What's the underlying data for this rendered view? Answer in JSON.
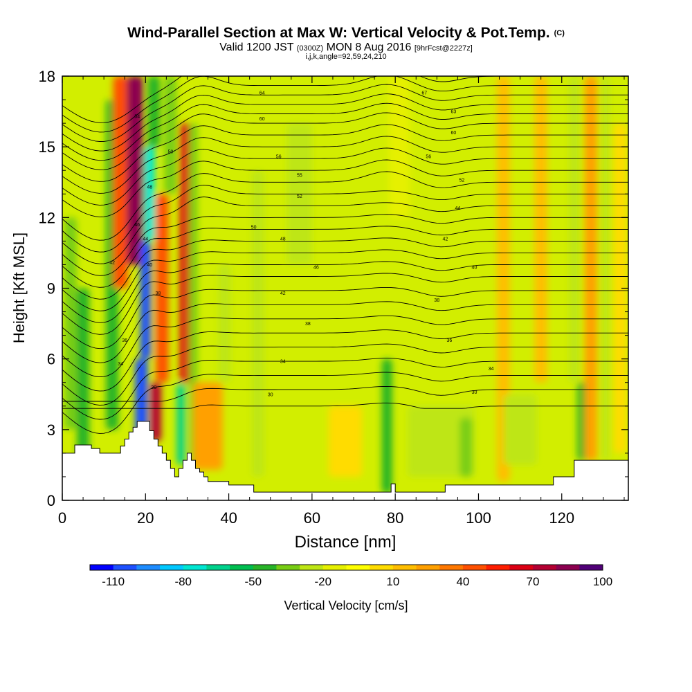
{
  "chart_data": {
    "type": "heatmap",
    "title": "Wind-Parallel Section at Max W: Vertical Velocity & Pot.Temp.",
    "title_mark": "(C)",
    "subtitle": {
      "valid": "Valid 1200 JST",
      "utc": "(0300Z)",
      "date": "MON 8 Aug 2016",
      "fcst": "[9hrFcst@2227z]"
    },
    "note": "i,j,k,angle=92,59,24,210",
    "xlabel": "Distance [nm]",
    "ylabel": "Height [Kft MSL]",
    "xlim": [
      0,
      136
    ],
    "ylim": [
      0,
      18
    ],
    "x_ticks": [
      "0",
      "20",
      "40",
      "60",
      "80",
      "100",
      "120"
    ],
    "x_tick_values": [
      0,
      20,
      40,
      60,
      80,
      100,
      120
    ],
    "y_ticks": [
      "0",
      "3",
      "6",
      "9",
      "12",
      "15",
      "18"
    ],
    "y_tick_values": [
      0,
      3,
      6,
      9,
      12,
      15,
      18
    ],
    "colorbar": {
      "label": "Vertical Velocity [cm/s]",
      "tick_labels": [
        "-110",
        "-80",
        "-50",
        "-20",
        "10",
        "40",
        "70",
        "100"
      ],
      "colors": [
        "#0000ff",
        "#1e50ff",
        "#1e8cff",
        "#00c8ff",
        "#00e6d2",
        "#00d28c",
        "#00be50",
        "#28b428",
        "#78cd14",
        "#bee614",
        "#e6f000",
        "#ffff00",
        "#ffdc00",
        "#ffbe00",
        "#ffa000",
        "#ff7800",
        "#ff5000",
        "#ff1e00",
        "#dc0014",
        "#b40032",
        "#8c0050",
        "#500078"
      ]
    },
    "background_field_color": "#d2ee00",
    "vertical_velocity_bands": [
      {
        "x": 2,
        "y0": 3,
        "y1": 12,
        "w": 3,
        "value": -30
      },
      {
        "x": 5,
        "y0": 1.8,
        "y1": 9,
        "w": 3,
        "value": -40
      },
      {
        "x": 12,
        "y0": 3,
        "y1": 17,
        "w": 3,
        "value": -35
      },
      {
        "x": 14,
        "y0": 9,
        "y1": 18,
        "w": 3.5,
        "value": 55
      },
      {
        "x": 17.5,
        "y0": 10,
        "y1": 18,
        "w": 4,
        "value": 90
      },
      {
        "x": 19,
        "y0": 2.8,
        "y1": 6,
        "w": 3,
        "value": -100
      },
      {
        "x": 20,
        "y0": 6,
        "y1": 11,
        "w": 2.5,
        "value": -95
      },
      {
        "x": 21,
        "y0": 11,
        "y1": 15,
        "w": 2.5,
        "value": -65
      },
      {
        "x": 22,
        "y0": 15,
        "y1": 18,
        "w": 3,
        "value": -40
      },
      {
        "x": 22.5,
        "y0": 2.5,
        "y1": 5,
        "w": 2.5,
        "value": 80
      },
      {
        "x": 24,
        "y0": 5,
        "y1": 13,
        "w": 3,
        "value": 50
      },
      {
        "x": 26,
        "y0": 13,
        "y1": 18,
        "w": 3,
        "value": -30
      },
      {
        "x": 28.5,
        "y0": 1.5,
        "y1": 5,
        "w": 2,
        "value": -60
      },
      {
        "x": 29.5,
        "y0": 5,
        "y1": 16,
        "w": 2.5,
        "value": 75
      },
      {
        "x": 31.5,
        "y0": 1.5,
        "y1": 16,
        "w": 2,
        "value": -25
      },
      {
        "x": 35,
        "y0": 1.3,
        "y1": 5,
        "w": 7,
        "value": 35
      },
      {
        "x": 39,
        "y0": 5,
        "y1": 10,
        "w": 3,
        "value": -15
      },
      {
        "x": 47,
        "y0": 1,
        "y1": 14,
        "w": 3,
        "value": -15
      },
      {
        "x": 57,
        "y0": 10,
        "y1": 16,
        "w": 6,
        "value": -15
      },
      {
        "x": 68,
        "y0": 1,
        "y1": 4,
        "w": 8,
        "value": 12
      },
      {
        "x": 78,
        "y0": 0.3,
        "y1": 6,
        "w": 2.5,
        "value": -35
      },
      {
        "x": 81,
        "y0": 12,
        "y1": 18,
        "w": 5,
        "value": -10
      },
      {
        "x": 91,
        "y0": 1,
        "y1": 4,
        "w": 16,
        "value": -20
      },
      {
        "x": 97,
        "y0": 1,
        "y1": 3.5,
        "w": 3,
        "value": -30
      },
      {
        "x": 106,
        "y0": 0.8,
        "y1": 18,
        "w": 3,
        "value": 20
      },
      {
        "x": 110,
        "y0": 1.5,
        "y1": 4.5,
        "w": 8,
        "value": -18
      },
      {
        "x": 115,
        "y0": 5,
        "y1": 18,
        "w": 3,
        "value": 25
      },
      {
        "x": 123,
        "y0": 5,
        "y1": 18,
        "w": 2.5,
        "value": -20
      },
      {
        "x": 125,
        "y0": 1.7,
        "y1": 5,
        "w": 2.5,
        "value": -35
      },
      {
        "x": 127,
        "y0": 1.7,
        "y1": 18,
        "w": 3,
        "value": 35
      },
      {
        "x": 130.5,
        "y0": 1.7,
        "y1": 18,
        "w": 2,
        "value": -15
      },
      {
        "x": 134,
        "y0": 2,
        "y1": 16,
        "w": 3,
        "value": 12
      }
    ],
    "terrain": {
      "x": [
        0,
        3,
        3,
        7,
        7,
        9,
        9,
        10,
        10,
        14,
        14,
        15,
        15,
        16,
        16,
        17,
        17,
        18,
        18,
        19,
        19,
        21,
        21,
        22,
        22,
        23,
        23,
        24,
        24,
        25,
        25,
        26,
        26,
        27,
        27,
        28,
        28,
        29,
        29,
        30,
        30,
        31,
        31,
        32,
        32,
        33,
        33,
        34,
        34,
        35,
        35,
        36,
        36,
        40,
        40,
        46,
        46,
        79,
        79,
        80,
        80,
        81,
        81,
        90,
        90,
        92,
        92,
        118,
        118,
        123,
        123,
        136
      ],
      "y": [
        2,
        2,
        2.35,
        2.35,
        2.2,
        2.2,
        2,
        2,
        2,
        2,
        2.3,
        2.3,
        2.6,
        2.6,
        2.9,
        2.9,
        3.1,
        3.1,
        3.35,
        3.35,
        3.35,
        3.35,
        2.95,
        2.95,
        2.6,
        2.6,
        2.3,
        2.3,
        2,
        2,
        1.7,
        1.7,
        1.35,
        1.35,
        1.0,
        1.0,
        1.35,
        1.35,
        1.7,
        1.7,
        2.0,
        2.0,
        1.7,
        1.7,
        1.35,
        1.35,
        1.2,
        1.2,
        1.0,
        1.0,
        0.8,
        0.8,
        0.8,
        0.8,
        0.65,
        0.65,
        0.35,
        0.35,
        0.7,
        0.7,
        0.35,
        0.35,
        0.35,
        0.35,
        0.35,
        0.35,
        0.65,
        0.65,
        1.0,
        1.0,
        1.7,
        1.7
      ]
    },
    "theta_contours": {
      "levels_y_right": [
        4.0,
        4.7,
        5.3,
        5.9,
        6.5,
        7.1,
        7.7,
        8.3,
        8.9,
        9.5,
        10.0,
        10.5,
        11.0,
        11.5,
        12.0,
        12.5,
        13.0,
        13.5,
        14.0,
        14.5,
        15.0,
        15.5,
        16.0,
        16.4,
        16.8,
        17.2,
        17.6,
        18.0
      ],
      "labels": [
        {
          "x": 18,
          "y": 16.3,
          "text": "54"
        },
        {
          "x": 26,
          "y": 14.8,
          "text": "50"
        },
        {
          "x": 21,
          "y": 13.3,
          "text": "48"
        },
        {
          "x": 18,
          "y": 11.7,
          "text": "46"
        },
        {
          "x": 20,
          "y": 11.1,
          "text": "44"
        },
        {
          "x": 21,
          "y": 10.0,
          "text": "40"
        },
        {
          "x": 23,
          "y": 8.8,
          "text": "38"
        },
        {
          "x": 12,
          "y": 10.1,
          "text": "42"
        },
        {
          "x": 15,
          "y": 6.8,
          "text": "36"
        },
        {
          "x": 14,
          "y": 5.8,
          "text": "34"
        },
        {
          "x": 22,
          "y": 4.8,
          "text": "30"
        },
        {
          "x": 48,
          "y": 17.3,
          "text": "64"
        },
        {
          "x": 48,
          "y": 16.2,
          "text": "60"
        },
        {
          "x": 52,
          "y": 14.6,
          "text": "56"
        },
        {
          "x": 57,
          "y": 13.8,
          "text": "55"
        },
        {
          "x": 57,
          "y": 12.9,
          "text": "52"
        },
        {
          "x": 46,
          "y": 11.6,
          "text": "50"
        },
        {
          "x": 53,
          "y": 11.1,
          "text": "48"
        },
        {
          "x": 61,
          "y": 9.9,
          "text": "46"
        },
        {
          "x": 53,
          "y": 8.8,
          "text": "42"
        },
        {
          "x": 59,
          "y": 7.5,
          "text": "38"
        },
        {
          "x": 53,
          "y": 5.9,
          "text": "34"
        },
        {
          "x": 50,
          "y": 4.5,
          "text": "30"
        },
        {
          "x": 87,
          "y": 17.3,
          "text": "67"
        },
        {
          "x": 94,
          "y": 16.5,
          "text": "63"
        },
        {
          "x": 94,
          "y": 15.6,
          "text": "60"
        },
        {
          "x": 88,
          "y": 14.6,
          "text": "56"
        },
        {
          "x": 96,
          "y": 13.6,
          "text": "52"
        },
        {
          "x": 95,
          "y": 12.4,
          "text": "44"
        },
        {
          "x": 92,
          "y": 11.1,
          "text": "42"
        },
        {
          "x": 99,
          "y": 9.9,
          "text": "40"
        },
        {
          "x": 90,
          "y": 8.5,
          "text": "38"
        },
        {
          "x": 93,
          "y": 6.8,
          "text": "36"
        },
        {
          "x": 103,
          "y": 5.6,
          "text": "34"
        },
        {
          "x": 99,
          "y": 4.6,
          "text": "30"
        }
      ]
    }
  }
}
